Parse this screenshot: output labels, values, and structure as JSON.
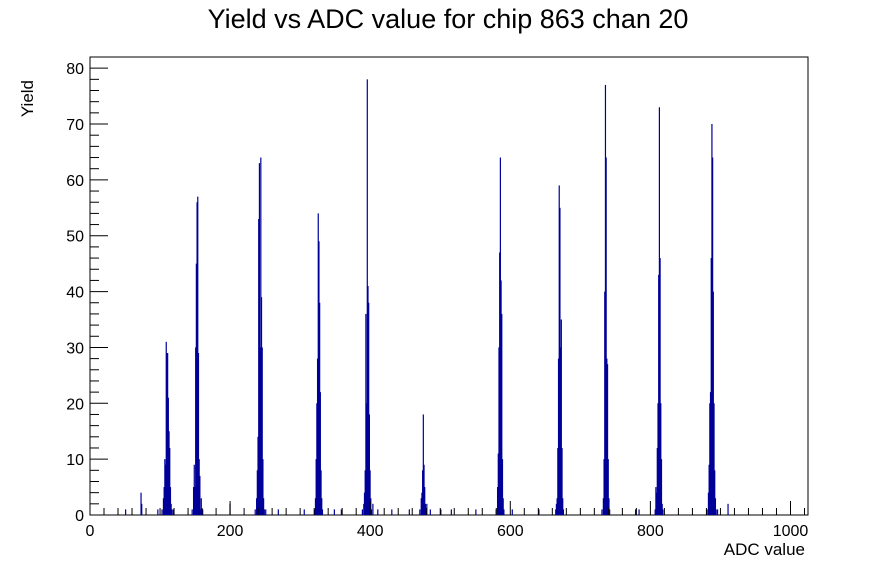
{
  "chart_data": {
    "type": "bar",
    "title": "Yield vs ADC value for chip 863 chan 20",
    "xlabel": "ADC value",
    "ylabel": "Yield",
    "xlim": [
      0,
      1025
    ],
    "ylim": [
      0,
      82
    ],
    "x_ticks": [
      0,
      200,
      400,
      600,
      800,
      1000
    ],
    "y_ticks": [
      0,
      10,
      20,
      30,
      40,
      50,
      60,
      70,
      80
    ],
    "bar_color": "#000099",
    "grid": false,
    "legend": "none",
    "bins": [
      {
        "x": 50,
        "y": 1
      },
      {
        "x": 72,
        "y": 4
      },
      {
        "x": 73,
        "y": 2
      },
      {
        "x": 96,
        "y": 1
      },
      {
        "x": 102,
        "y": 1
      },
      {
        "x": 104,
        "y": 3
      },
      {
        "x": 105,
        "y": 5
      },
      {
        "x": 106,
        "y": 10
      },
      {
        "x": 107,
        "y": 9
      },
      {
        "x": 108,
        "y": 31
      },
      {
        "x": 109,
        "y": 29
      },
      {
        "x": 110,
        "y": 29
      },
      {
        "x": 111,
        "y": 21
      },
      {
        "x": 112,
        "y": 15
      },
      {
        "x": 113,
        "y": 12
      },
      {
        "x": 114,
        "y": 5
      },
      {
        "x": 115,
        "y": 2
      },
      {
        "x": 116,
        "y": 1
      },
      {
        "x": 118,
        "y": 1
      },
      {
        "x": 145,
        "y": 1
      },
      {
        "x": 147,
        "y": 5
      },
      {
        "x": 148,
        "y": 9
      },
      {
        "x": 149,
        "y": 5
      },
      {
        "x": 150,
        "y": 30
      },
      {
        "x": 151,
        "y": 45
      },
      {
        "x": 152,
        "y": 56
      },
      {
        "x": 153,
        "y": 57
      },
      {
        "x": 154,
        "y": 29
      },
      {
        "x": 155,
        "y": 10
      },
      {
        "x": 156,
        "y": 7
      },
      {
        "x": 157,
        "y": 1
      },
      {
        "x": 158,
        "y": 3
      },
      {
        "x": 160,
        "y": 1
      },
      {
        "x": 199,
        "y": 2
      },
      {
        "x": 235,
        "y": 1
      },
      {
        "x": 237,
        "y": 3
      },
      {
        "x": 238,
        "y": 8
      },
      {
        "x": 239,
        "y": 14
      },
      {
        "x": 240,
        "y": 53
      },
      {
        "x": 241,
        "y": 63
      },
      {
        "x": 242,
        "y": 30
      },
      {
        "x": 243,
        "y": 64
      },
      {
        "x": 244,
        "y": 39
      },
      {
        "x": 245,
        "y": 30
      },
      {
        "x": 246,
        "y": 10
      },
      {
        "x": 247,
        "y": 3
      },
      {
        "x": 248,
        "y": 1
      },
      {
        "x": 250,
        "y": 1
      },
      {
        "x": 268,
        "y": 1
      },
      {
        "x": 305,
        "y": 1
      },
      {
        "x": 320,
        "y": 1
      },
      {
        "x": 321,
        "y": 3
      },
      {
        "x": 322,
        "y": 10
      },
      {
        "x": 323,
        "y": 20
      },
      {
        "x": 324,
        "y": 28
      },
      {
        "x": 325,
        "y": 54
      },
      {
        "x": 326,
        "y": 49
      },
      {
        "x": 327,
        "y": 38
      },
      {
        "x": 328,
        "y": 22
      },
      {
        "x": 329,
        "y": 8
      },
      {
        "x": 330,
        "y": 3
      },
      {
        "x": 331,
        "y": 1
      },
      {
        "x": 348,
        "y": 1
      },
      {
        "x": 358,
        "y": 1
      },
      {
        "x": 388,
        "y": 1
      },
      {
        "x": 390,
        "y": 2
      },
      {
        "x": 391,
        "y": 4
      },
      {
        "x": 392,
        "y": 8
      },
      {
        "x": 393,
        "y": 36
      },
      {
        "x": 394,
        "y": 20
      },
      {
        "x": 395,
        "y": 78
      },
      {
        "x": 396,
        "y": 41
      },
      {
        "x": 397,
        "y": 38
      },
      {
        "x": 398,
        "y": 18
      },
      {
        "x": 399,
        "y": 8
      },
      {
        "x": 400,
        "y": 3
      },
      {
        "x": 401,
        "y": 1
      },
      {
        "x": 403,
        "y": 2
      },
      {
        "x": 410,
        "y": 1
      },
      {
        "x": 430,
        "y": 1
      },
      {
        "x": 455,
        "y": 1
      },
      {
        "x": 470,
        "y": 1
      },
      {
        "x": 472,
        "y": 3
      },
      {
        "x": 473,
        "y": 4
      },
      {
        "x": 474,
        "y": 8
      },
      {
        "x": 475,
        "y": 18
      },
      {
        "x": 476,
        "y": 9
      },
      {
        "x": 477,
        "y": 5
      },
      {
        "x": 478,
        "y": 2
      },
      {
        "x": 480,
        "y": 2
      },
      {
        "x": 485,
        "y": 1
      },
      {
        "x": 500,
        "y": 1
      },
      {
        "x": 515,
        "y": 1
      },
      {
        "x": 550,
        "y": 1
      },
      {
        "x": 579,
        "y": 1
      },
      {
        "x": 581,
        "y": 5
      },
      {
        "x": 582,
        "y": 11
      },
      {
        "x": 583,
        "y": 30
      },
      {
        "x": 584,
        "y": 47
      },
      {
        "x": 585,
        "y": 64
      },
      {
        "x": 586,
        "y": 42
      },
      {
        "x": 587,
        "y": 36
      },
      {
        "x": 588,
        "y": 10
      },
      {
        "x": 589,
        "y": 3
      },
      {
        "x": 590,
        "y": 1
      },
      {
        "x": 602,
        "y": 1
      },
      {
        "x": 640,
        "y": 1
      },
      {
        "x": 664,
        "y": 1
      },
      {
        "x": 665,
        "y": 2
      },
      {
        "x": 666,
        "y": 3
      },
      {
        "x": 667,
        "y": 12
      },
      {
        "x": 668,
        "y": 28
      },
      {
        "x": 669,
        "y": 59
      },
      {
        "x": 670,
        "y": 55
      },
      {
        "x": 671,
        "y": 30
      },
      {
        "x": 672,
        "y": 35
      },
      {
        "x": 673,
        "y": 12
      },
      {
        "x": 674,
        "y": 3
      },
      {
        "x": 675,
        "y": 1
      },
      {
        "x": 730,
        "y": 1
      },
      {
        "x": 732,
        "y": 3
      },
      {
        "x": 733,
        "y": 10
      },
      {
        "x": 734,
        "y": 40
      },
      {
        "x": 735,
        "y": 77
      },
      {
        "x": 736,
        "y": 64
      },
      {
        "x": 737,
        "y": 28
      },
      {
        "x": 738,
        "y": 27
      },
      {
        "x": 739,
        "y": 10
      },
      {
        "x": 740,
        "y": 3
      },
      {
        "x": 741,
        "y": 1
      },
      {
        "x": 778,
        "y": 1
      },
      {
        "x": 783,
        "y": 1
      },
      {
        "x": 806,
        "y": 1
      },
      {
        "x": 807,
        "y": 5
      },
      {
        "x": 808,
        "y": 4
      },
      {
        "x": 809,
        "y": 12
      },
      {
        "x": 810,
        "y": 20
      },
      {
        "x": 811,
        "y": 43
      },
      {
        "x": 812,
        "y": 73
      },
      {
        "x": 813,
        "y": 46
      },
      {
        "x": 814,
        "y": 20
      },
      {
        "x": 815,
        "y": 10
      },
      {
        "x": 816,
        "y": 2
      },
      {
        "x": 817,
        "y": 1
      },
      {
        "x": 880,
        "y": 1
      },
      {
        "x": 882,
        "y": 4
      },
      {
        "x": 883,
        "y": 9
      },
      {
        "x": 884,
        "y": 20
      },
      {
        "x": 885,
        "y": 22
      },
      {
        "x": 886,
        "y": 46
      },
      {
        "x": 887,
        "y": 70
      },
      {
        "x": 888,
        "y": 64
      },
      {
        "x": 889,
        "y": 40
      },
      {
        "x": 890,
        "y": 20
      },
      {
        "x": 891,
        "y": 8
      },
      {
        "x": 892,
        "y": 3
      },
      {
        "x": 893,
        "y": 1
      },
      {
        "x": 895,
        "y": 1
      },
      {
        "x": 910,
        "y": 2
      }
    ]
  }
}
